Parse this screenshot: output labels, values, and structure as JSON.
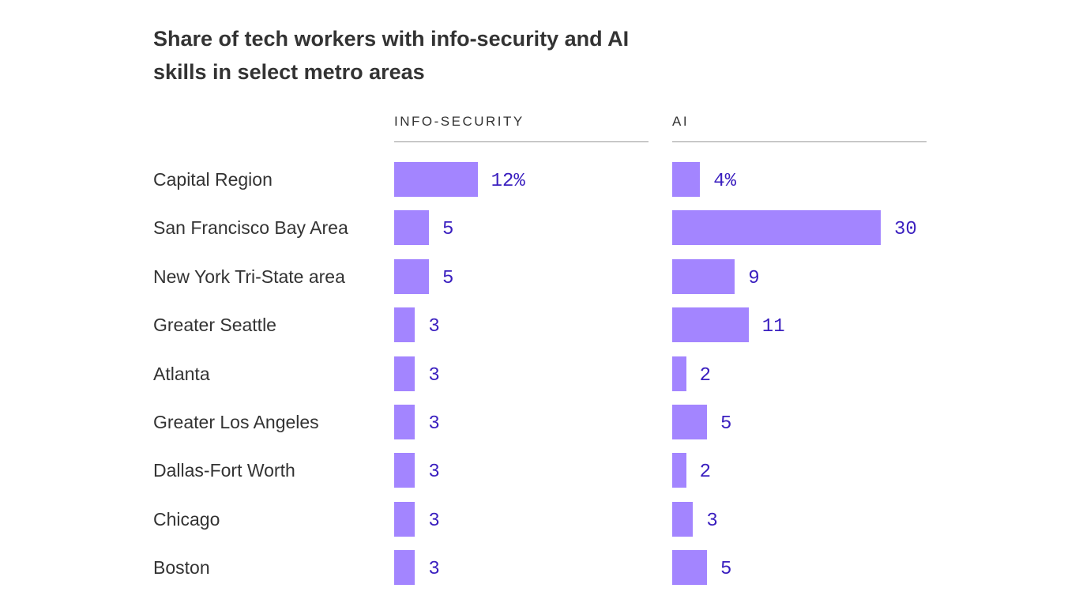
{
  "chart_data": {
    "type": "bar",
    "title": "Share of tech workers with info-security and AI skills in select metro areas",
    "categories": [
      "Capital Region",
      "San Francisco Bay Area",
      "New York Tri-State area",
      "Greater Seattle",
      "Atlanta",
      "Greater Los Angeles",
      "Dallas-Fort Worth",
      "Chicago",
      "Boston"
    ],
    "series": [
      {
        "name": "INFO-SECURITY",
        "values": [
          12,
          5,
          5,
          3,
          3,
          3,
          3,
          3,
          3
        ],
        "labels": [
          "12%",
          "5",
          "5",
          "3",
          "3",
          "3",
          "3",
          "3",
          "3"
        ]
      },
      {
        "name": "AI",
        "values": [
          4,
          30,
          9,
          11,
          2,
          5,
          2,
          3,
          5
        ],
        "labels": [
          "4%",
          "30",
          "9",
          "11",
          "2",
          "5",
          "2",
          "3",
          "5"
        ]
      }
    ],
    "orientation": "horizontal",
    "grid": false,
    "colors": {
      "bar": "#a385ff",
      "label": "#3a1fbf"
    }
  }
}
